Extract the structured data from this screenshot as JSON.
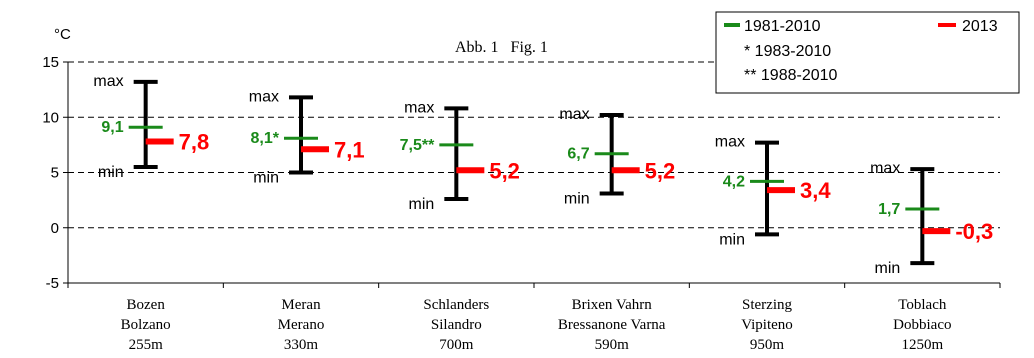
{
  "chart_data": {
    "type": "errorbar",
    "title": "Abb. 1   Fig. 1",
    "ylabel": "°C",
    "ylim": [
      -5,
      15
    ],
    "yticks": [
      -5,
      0,
      5,
      10,
      15
    ],
    "ytick_labels": [
      "-5",
      "0",
      "5",
      "10",
      "15"
    ],
    "grid": "dashed-horizontal",
    "legend_position": "top-right",
    "legend": {
      "reference_label": "1981-2010",
      "current_label": "2013",
      "notes": [
        "* 1983-2010",
        "** 1988-2010"
      ]
    },
    "range_labels": {
      "max": "max",
      "min": "min"
    },
    "categories": [
      {
        "line1": "Bozen",
        "line2": "Bolzano",
        "line3": "255m"
      },
      {
        "line1": "Meran",
        "line2": "Merano",
        "line3": "330m"
      },
      {
        "line1": "Schlanders",
        "line2": "Silandro",
        "line3": "700m"
      },
      {
        "line1": "Brixen Vahrn",
        "line2": "Bressanone Varna",
        "line3": "590m"
      },
      {
        "line1": "Sterzing",
        "line2": "Vipiteno",
        "line3": "950m"
      },
      {
        "line1": "Toblach",
        "line2": "Dobbiaco",
        "line3": "1250m"
      }
    ],
    "series": [
      {
        "name": "max",
        "values": [
          13.2,
          11.8,
          10.8,
          10.2,
          7.7,
          5.3
        ]
      },
      {
        "name": "min",
        "values": [
          5.5,
          5.0,
          2.6,
          3.1,
          -0.6,
          -3.2
        ]
      },
      {
        "name": "1981-2010",
        "values": [
          9.1,
          8.1,
          7.5,
          6.7,
          4.2,
          1.7
        ],
        "labels": [
          "9,1",
          "8,1*",
          "7,5**",
          "6,7",
          "4,2",
          "1,7"
        ]
      },
      {
        "name": "2013",
        "values": [
          7.8,
          7.1,
          5.2,
          5.2,
          3.4,
          -0.3
        ],
        "labels": [
          "7,8",
          "7,1",
          "5,2",
          "5,2",
          "3,4",
          "-0,3"
        ]
      }
    ],
    "colors": {
      "reference": "#1a8a1a",
      "current": "#ff0000",
      "range": "#000000",
      "grid": "#000000"
    }
  }
}
